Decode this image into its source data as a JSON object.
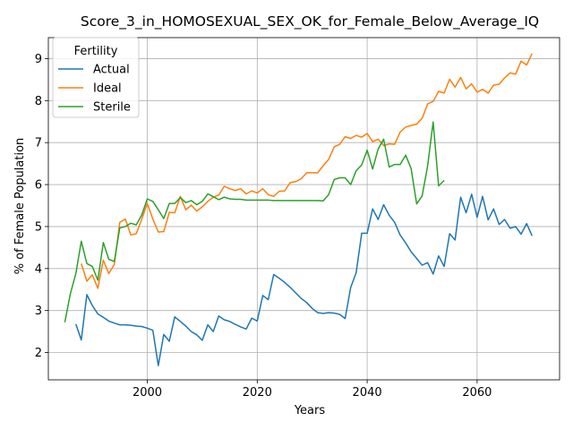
{
  "chart_data": {
    "type": "line",
    "title": "Score_3_in_HOMOSEXUAL_SEX_OK_for_Female_Below_Average_IQ",
    "xlabel": "Years",
    "ylabel": "% of Female Population",
    "xlim": [
      1982,
      2075
    ],
    "ylim": [
      1.35,
      9.5
    ],
    "xticks": [
      2000,
      2020,
      2040,
      2060
    ],
    "yticks": [
      2,
      3,
      4,
      5,
      6,
      7,
      8,
      9
    ],
    "grid": true,
    "legend": {
      "title": "Fertility",
      "placement": "top-left"
    },
    "series": [
      {
        "name": "Actual",
        "color": "#1f77b4",
        "x": [
          1987,
          1988,
          1989,
          1990,
          1991,
          1992,
          1993,
          1994,
          1995,
          1996,
          1997,
          1998,
          1999,
          2000,
          2001,
          2002,
          2003,
          2004,
          2005,
          2006,
          2007,
          2008,
          2009,
          2010,
          2011,
          2012,
          2013,
          2014,
          2015,
          2016,
          2017,
          2018,
          2019,
          2020,
          2021,
          2022,
          2023,
          2024,
          2025,
          2026,
          2027,
          2028,
          2029,
          2030,
          2031,
          2032,
          2033,
          2034,
          2035,
          2036,
          2037,
          2038,
          2039,
          2040,
          2041,
          2042,
          2043,
          2044,
          2045,
          2046,
          2047,
          2048,
          2049,
          2050,
          2051,
          2052,
          2053,
          2054,
          2055,
          2056,
          2057,
          2058,
          2059,
          2060,
          2061,
          2062,
          2063,
          2064,
          2065,
          2066,
          2067,
          2068,
          2069,
          2070
        ],
        "values": [
          2.68,
          2.3,
          3.38,
          3.12,
          2.92,
          2.84,
          2.75,
          2.7,
          2.66,
          2.66,
          2.65,
          2.63,
          2.62,
          2.58,
          2.53,
          1.69,
          2.43,
          2.27,
          2.85,
          2.74,
          2.63,
          2.5,
          2.42,
          2.29,
          2.66,
          2.5,
          2.87,
          2.78,
          2.74,
          2.67,
          2.61,
          2.56,
          2.82,
          2.75,
          3.36,
          3.26,
          3.86,
          3.77,
          3.67,
          3.55,
          3.42,
          3.29,
          3.19,
          3.05,
          2.95,
          2.93,
          2.95,
          2.94,
          2.91,
          2.81,
          3.55,
          3.9,
          4.84,
          4.84,
          5.42,
          5.17,
          5.52,
          5.27,
          5.1,
          4.8,
          4.61,
          4.4,
          4.24,
          4.08,
          4.14,
          3.87,
          4.3,
          4.05,
          4.83,
          4.68,
          5.7,
          5.33,
          5.77,
          5.22,
          5.72,
          5.16,
          5.42,
          5.05,
          5.17,
          4.96,
          5.0,
          4.82,
          5.07,
          4.78
        ]
      },
      {
        "name": "Ideal",
        "color": "#ff7f0e",
        "x": [
          1988,
          1989,
          1990,
          1991,
          1992,
          1993,
          1994,
          1995,
          1996,
          1997,
          1998,
          1999,
          2000,
          2001,
          2002,
          2003,
          2004,
          2005,
          2006,
          2007,
          2008,
          2009,
          2010,
          2011,
          2012,
          2013,
          2014,
          2015,
          2016,
          2017,
          2018,
          2019,
          2020,
          2021,
          2022,
          2023,
          2024,
          2025,
          2026,
          2027,
          2028,
          2029,
          2030,
          2031,
          2032,
          2033,
          2034,
          2035,
          2036,
          2037,
          2038,
          2039,
          2040,
          2041,
          2042,
          2043,
          2044,
          2045,
          2046,
          2047,
          2048,
          2049,
          2050,
          2051,
          2052,
          2053,
          2054,
          2055,
          2056,
          2057,
          2058,
          2059,
          2060,
          2061,
          2062,
          2063,
          2064,
          2065,
          2066,
          2067,
          2068,
          2069,
          2070
        ],
        "values": [
          4.12,
          3.7,
          3.85,
          3.53,
          4.2,
          3.88,
          4.1,
          5.1,
          5.18,
          4.8,
          4.83,
          5.18,
          5.55,
          5.18,
          4.87,
          4.88,
          5.34,
          5.33,
          5.72,
          5.4,
          5.51,
          5.37,
          5.47,
          5.6,
          5.7,
          5.75,
          5.96,
          5.9,
          5.86,
          5.9,
          5.78,
          5.85,
          5.8,
          5.9,
          5.76,
          5.72,
          5.84,
          5.85,
          6.05,
          6.07,
          6.14,
          6.28,
          6.28,
          6.28,
          6.45,
          6.6,
          6.9,
          6.96,
          7.14,
          7.1,
          7.17,
          7.13,
          7.22,
          7.02,
          7.08,
          6.93,
          6.97,
          6.96,
          7.25,
          7.37,
          7.41,
          7.44,
          7.58,
          7.92,
          7.98,
          8.22,
          8.18,
          8.51,
          8.32,
          8.55,
          8.28,
          8.4,
          8.2,
          8.27,
          8.18,
          8.37,
          8.39,
          8.54,
          8.66,
          8.63,
          8.94,
          8.85,
          9.12
        ]
      },
      {
        "name": "Sterile",
        "color": "#2ca02c",
        "x": [
          1985,
          1986,
          1987,
          1988,
          1989,
          1990,
          1991,
          1992,
          1993,
          1994,
          1995,
          1996,
          1997,
          1998,
          1999,
          2000,
          2001,
          2002,
          2003,
          2004,
          2005,
          2006,
          2007,
          2008,
          2009,
          2010,
          2011,
          2012,
          2013,
          2014,
          2015,
          2016,
          2017,
          2018,
          2019,
          2020,
          2021,
          2022,
          2023,
          2024,
          2025,
          2026,
          2027,
          2028,
          2029,
          2030,
          2031,
          2032,
          2033,
          2034,
          2035,
          2036,
          2037,
          2038,
          2039,
          2040,
          2041,
          2042,
          2043,
          2044,
          2045,
          2046,
          2047,
          2048,
          2049,
          2050,
          2051,
          2052,
          2053,
          2054
        ],
        "values": [
          2.72,
          3.4,
          3.88,
          4.65,
          4.12,
          4.05,
          3.72,
          4.62,
          4.22,
          4.17,
          4.97,
          5.0,
          5.08,
          5.04,
          5.28,
          5.66,
          5.6,
          5.4,
          5.19,
          5.55,
          5.55,
          5.69,
          5.57,
          5.62,
          5.52,
          5.6,
          5.78,
          5.71,
          5.64,
          5.7,
          5.66,
          5.65,
          5.65,
          5.63,
          5.63,
          5.63,
          5.63,
          5.63,
          5.62,
          5.62,
          5.62,
          5.62,
          5.62,
          5.62,
          5.62,
          5.62,
          5.62,
          5.61,
          5.76,
          6.12,
          6.16,
          6.16,
          6.0,
          6.33,
          6.47,
          6.82,
          6.37,
          6.85,
          7.08,
          6.42,
          6.48,
          6.48,
          6.7,
          6.38,
          5.54,
          5.73,
          6.44,
          7.49,
          5.97,
          6.1
        ]
      }
    ]
  }
}
